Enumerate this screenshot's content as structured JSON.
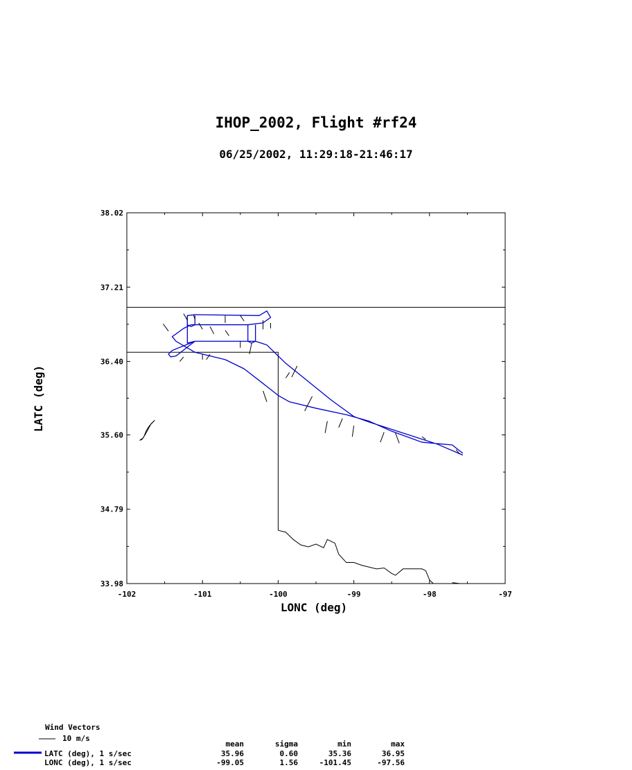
{
  "chart_data": {
    "type": "line",
    "title": "IHOP_2002, Flight #rf24",
    "subtitle": "06/25/2002, 11:29:18-21:46:17",
    "xlabel": "LONC (deg)",
    "ylabel": "LATC (deg)",
    "xlim": [
      -102,
      -97
    ],
    "ylim": [
      33.98,
      38.02
    ],
    "x_ticks": [
      "-102",
      "-101",
      "-100",
      "-99",
      "-98",
      "-97"
    ],
    "y_ticks": [
      "33.98",
      "34.79",
      "35.60",
      "36.40",
      "37.21",
      "38.02"
    ],
    "grid": false,
    "series": [
      {
        "name": "LATC (deg), 1 s/sec",
        "color": "#0000cc",
        "points": [
          [
            -97.56,
            35.38
          ],
          [
            -97.9,
            35.5
          ],
          [
            -98.2,
            35.58
          ],
          [
            -98.5,
            35.66
          ],
          [
            -98.8,
            35.74
          ],
          [
            -99.0,
            35.8
          ],
          [
            -99.3,
            35.98
          ],
          [
            -99.6,
            36.18
          ],
          [
            -99.9,
            36.38
          ],
          [
            -100.15,
            36.58
          ],
          [
            -100.3,
            36.62
          ],
          [
            -101.1,
            36.62
          ],
          [
            -101.2,
            36.6
          ],
          [
            -101.2,
            36.9
          ],
          [
            -101.1,
            36.91
          ],
          [
            -100.25,
            36.9
          ],
          [
            -100.15,
            36.95
          ],
          [
            -100.1,
            36.88
          ],
          [
            -100.2,
            36.82
          ],
          [
            -100.4,
            36.8
          ],
          [
            -101.15,
            36.8
          ],
          [
            -101.25,
            36.76
          ],
          [
            -101.4,
            36.67
          ],
          [
            -101.35,
            36.62
          ],
          [
            -101.1,
            36.5
          ],
          [
            -100.7,
            36.42
          ],
          [
            -100.45,
            36.32
          ],
          [
            -100.2,
            36.16
          ],
          [
            -100.0,
            36.03
          ],
          [
            -99.85,
            35.96
          ],
          [
            -99.5,
            35.89
          ],
          [
            -99.1,
            35.82
          ],
          [
            -98.8,
            35.75
          ],
          [
            -98.5,
            35.64
          ],
          [
            -98.1,
            35.52
          ],
          [
            -97.7,
            35.49
          ],
          [
            -97.56,
            35.4
          ]
        ]
      }
    ],
    "wind_vectors_label": "Wind Vectors",
    "wind_scale_label": "10 m/s",
    "stats": {
      "headers": [
        "mean",
        "sigma",
        "min",
        "max"
      ],
      "rows": [
        {
          "label": "LATC (deg), 1 s/sec",
          "values": [
            "35.96",
            "0.60",
            "35.36",
            "36.95"
          ]
        },
        {
          "label": "LONC (deg), 1 s/sec",
          "values": [
            "-99.05",
            "1.56",
            "-101.45",
            "-97.56"
          ]
        }
      ]
    },
    "colors": {
      "track": "#0000cc",
      "map": "#000000"
    }
  }
}
